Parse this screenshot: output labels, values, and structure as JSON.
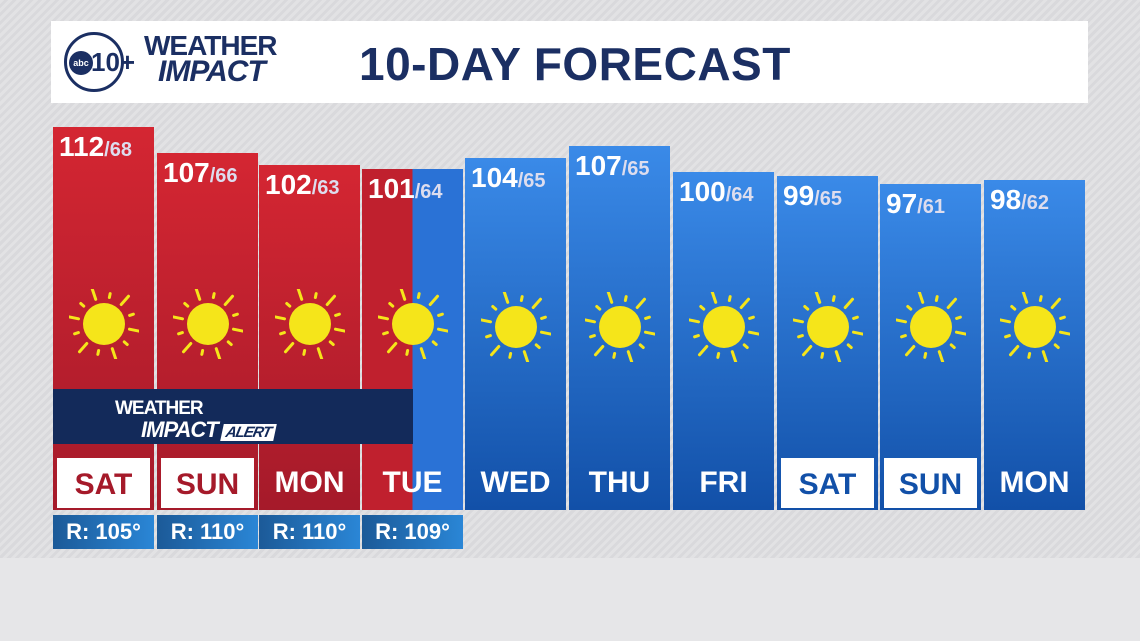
{
  "header": {
    "logo_station": "abc",
    "logo_channel": "10+",
    "logo_brand_line1": "WEATHER",
    "logo_brand_line2": "IMPACT",
    "title": "10-DAY FORECAST"
  },
  "alert_banner": {
    "line1": "WEATHER",
    "line2": "IMPACT",
    "tag": "ALERT"
  },
  "colors": {
    "heat_red": "#c0202e",
    "normal_blue": "#2a72d6",
    "navy": "#1b2f63",
    "sun": "#f5e51a"
  },
  "days": [
    {
      "day": "SAT",
      "high": "112",
      "low": "/68",
      "icon": "sun-icon",
      "style": "red",
      "boxed": true,
      "real_feel": "R: 105°"
    },
    {
      "day": "SUN",
      "high": "107",
      "low": "/66",
      "icon": "sun-icon",
      "style": "red",
      "boxed": true,
      "real_feel": "R: 110°"
    },
    {
      "day": "MON",
      "high": "102",
      "low": "/63",
      "icon": "sun-icon",
      "style": "red",
      "boxed": false,
      "real_feel": "R: 110°"
    },
    {
      "day": "TUE",
      "high": "101",
      "low": "/64",
      "icon": "sun-icon",
      "style": "split",
      "boxed": false,
      "real_feel": "R: 109°"
    },
    {
      "day": "WED",
      "high": "104",
      "low": "/65",
      "icon": "sun-icon",
      "style": "blue",
      "boxed": false
    },
    {
      "day": "THU",
      "high": "107",
      "low": "/65",
      "icon": "sun-icon",
      "style": "blue",
      "boxed": false
    },
    {
      "day": "FRI",
      "high": "100",
      "low": "/64",
      "icon": "sun-icon",
      "style": "blue",
      "boxed": false
    },
    {
      "day": "SAT",
      "high": "99",
      "low": "/65",
      "icon": "sun-icon",
      "style": "blue",
      "boxed": true
    },
    {
      "day": "SUN",
      "high": "97",
      "low": "/61",
      "icon": "sun-icon",
      "style": "blue",
      "boxed": true
    },
    {
      "day": "MON",
      "high": "98",
      "low": "/62",
      "icon": "sun-icon",
      "style": "blue",
      "boxed": false
    }
  ]
}
